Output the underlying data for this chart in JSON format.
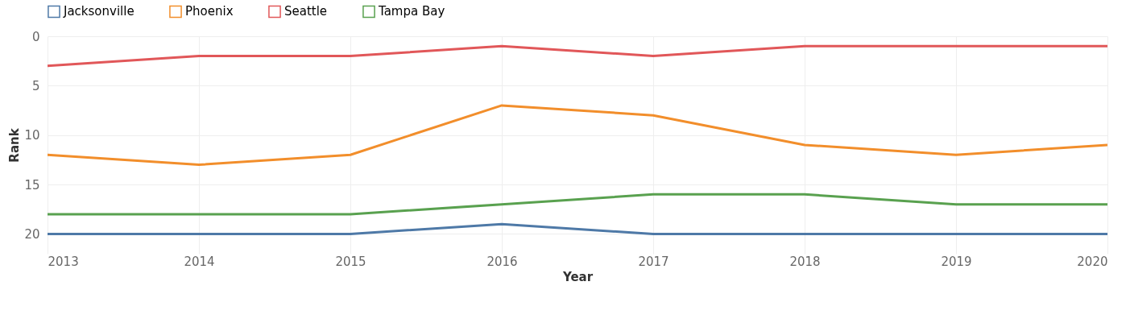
{
  "chart_data": {
    "type": "line",
    "xlabel": "Year",
    "ylabel": "Rank",
    "x": [
      2013,
      2014,
      2015,
      2016,
      2017,
      2018,
      2019,
      2020
    ],
    "xlim": [
      2013,
      2020
    ],
    "xticks": [
      2013,
      2014,
      2015,
      2016,
      2017,
      2018,
      2019,
      2020
    ],
    "ylim": [
      22,
      0
    ],
    "yticks": [
      0,
      5,
      10,
      15,
      20
    ],
    "grid": true,
    "legend": "top left",
    "marker": "none",
    "line_style": "solid",
    "series": [
      {
        "name": "Jacksonville",
        "color": "#4e79a7",
        "values": [
          20,
          20,
          20,
          19,
          20,
          20,
          20,
          20
        ]
      },
      {
        "name": "Phoenix",
        "color": "#f28e2b",
        "values": [
          12,
          13,
          12,
          7,
          8,
          11,
          12,
          11
        ]
      },
      {
        "name": "Seattle",
        "color": "#e15759",
        "values": [
          3,
          2,
          2,
          1,
          2,
          1,
          1,
          1
        ]
      },
      {
        "name": "Tampa Bay",
        "color": "#59a14f",
        "values": [
          18,
          18,
          18,
          17,
          16,
          16,
          17,
          17
        ]
      }
    ]
  }
}
